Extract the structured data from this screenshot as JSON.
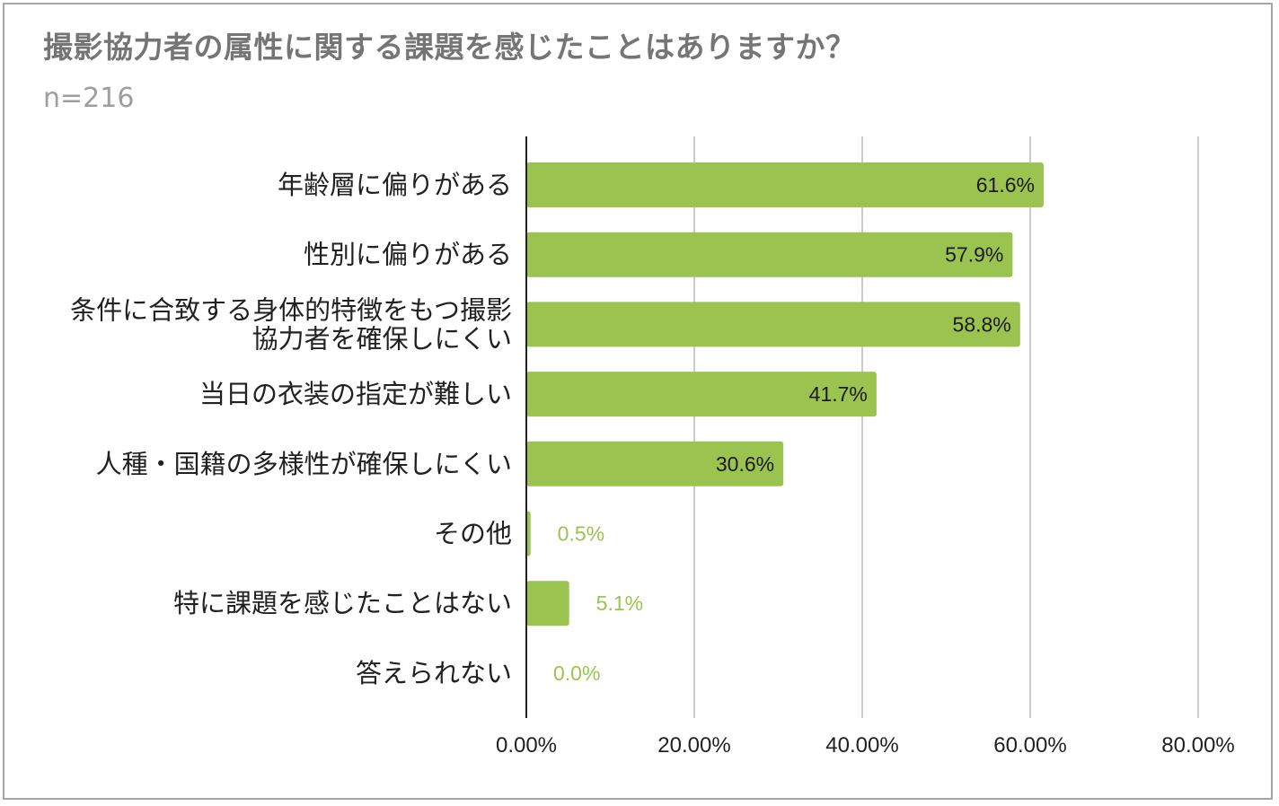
{
  "chart_data": {
    "type": "bar",
    "orientation": "horizontal",
    "title": "撮影協力者の属性に関する課題を感じたことはありますか？",
    "subtitle": "n=216",
    "categories": [
      [
        "年齢層に偏りがある"
      ],
      [
        "性別に偏りがある"
      ],
      [
        "条件に合致する身体的特徴をもつ撮影",
        "協力者を確保しにくい"
      ],
      [
        "当日の衣装の指定が難しい"
      ],
      [
        "人種・国籍の多様性が確保しにくい"
      ],
      [
        "その他"
      ],
      [
        "特に課題を感じたことはない"
      ],
      [
        "答えられない"
      ]
    ],
    "values": [
      61.6,
      57.9,
      58.8,
      41.7,
      30.6,
      0.5,
      5.1,
      0.0
    ],
    "data_labels": [
      "61.6%",
      "57.9%",
      "58.8%",
      "41.7%",
      "30.6%",
      "0.5%",
      "5.1%",
      "0.0%"
    ],
    "xlim": [
      0,
      80
    ],
    "xticks": [
      0,
      20,
      40,
      60,
      80
    ],
    "xtick_labels": [
      "0.00%",
      "20.00%",
      "40.00%",
      "60.00%",
      "80.00%"
    ],
    "grid": true,
    "legend": "none",
    "colors": {
      "bar": "#9bc34f",
      "label_inside": "#1a1a1a",
      "label_outside": "#9bc34f",
      "grid": "#cccccc",
      "axis": "#222222",
      "title": "#757575",
      "subtitle": "#9e9e9e",
      "border": "#a6a6a6"
    }
  }
}
